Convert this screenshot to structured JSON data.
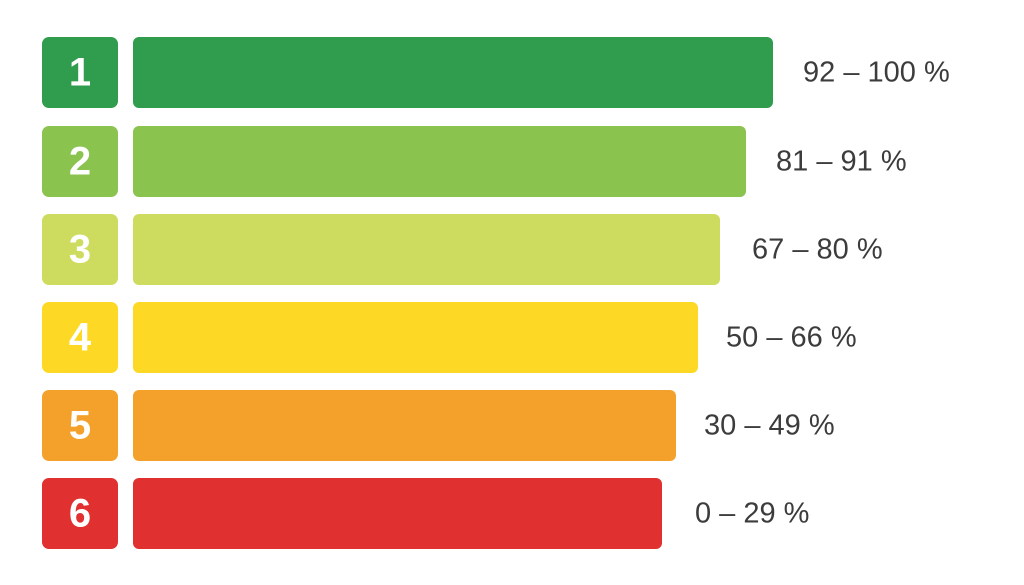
{
  "rows": [
    {
      "grade": "1",
      "range": "92 – 100 %",
      "color": "#2f9c4e"
    },
    {
      "grade": "2",
      "range": "81 – 91 %",
      "color": "#8bc34f"
    },
    {
      "grade": "3",
      "range": "67 – 80 %",
      "color": "#cddc5e"
    },
    {
      "grade": "4",
      "range": "50 – 66 %",
      "color": "#fdd925"
    },
    {
      "grade": "5",
      "range": "30 – 49 %",
      "color": "#f4a12c"
    },
    {
      "grade": "6",
      "range": "0 – 29 %",
      "color": "#e0302f"
    }
  ]
}
